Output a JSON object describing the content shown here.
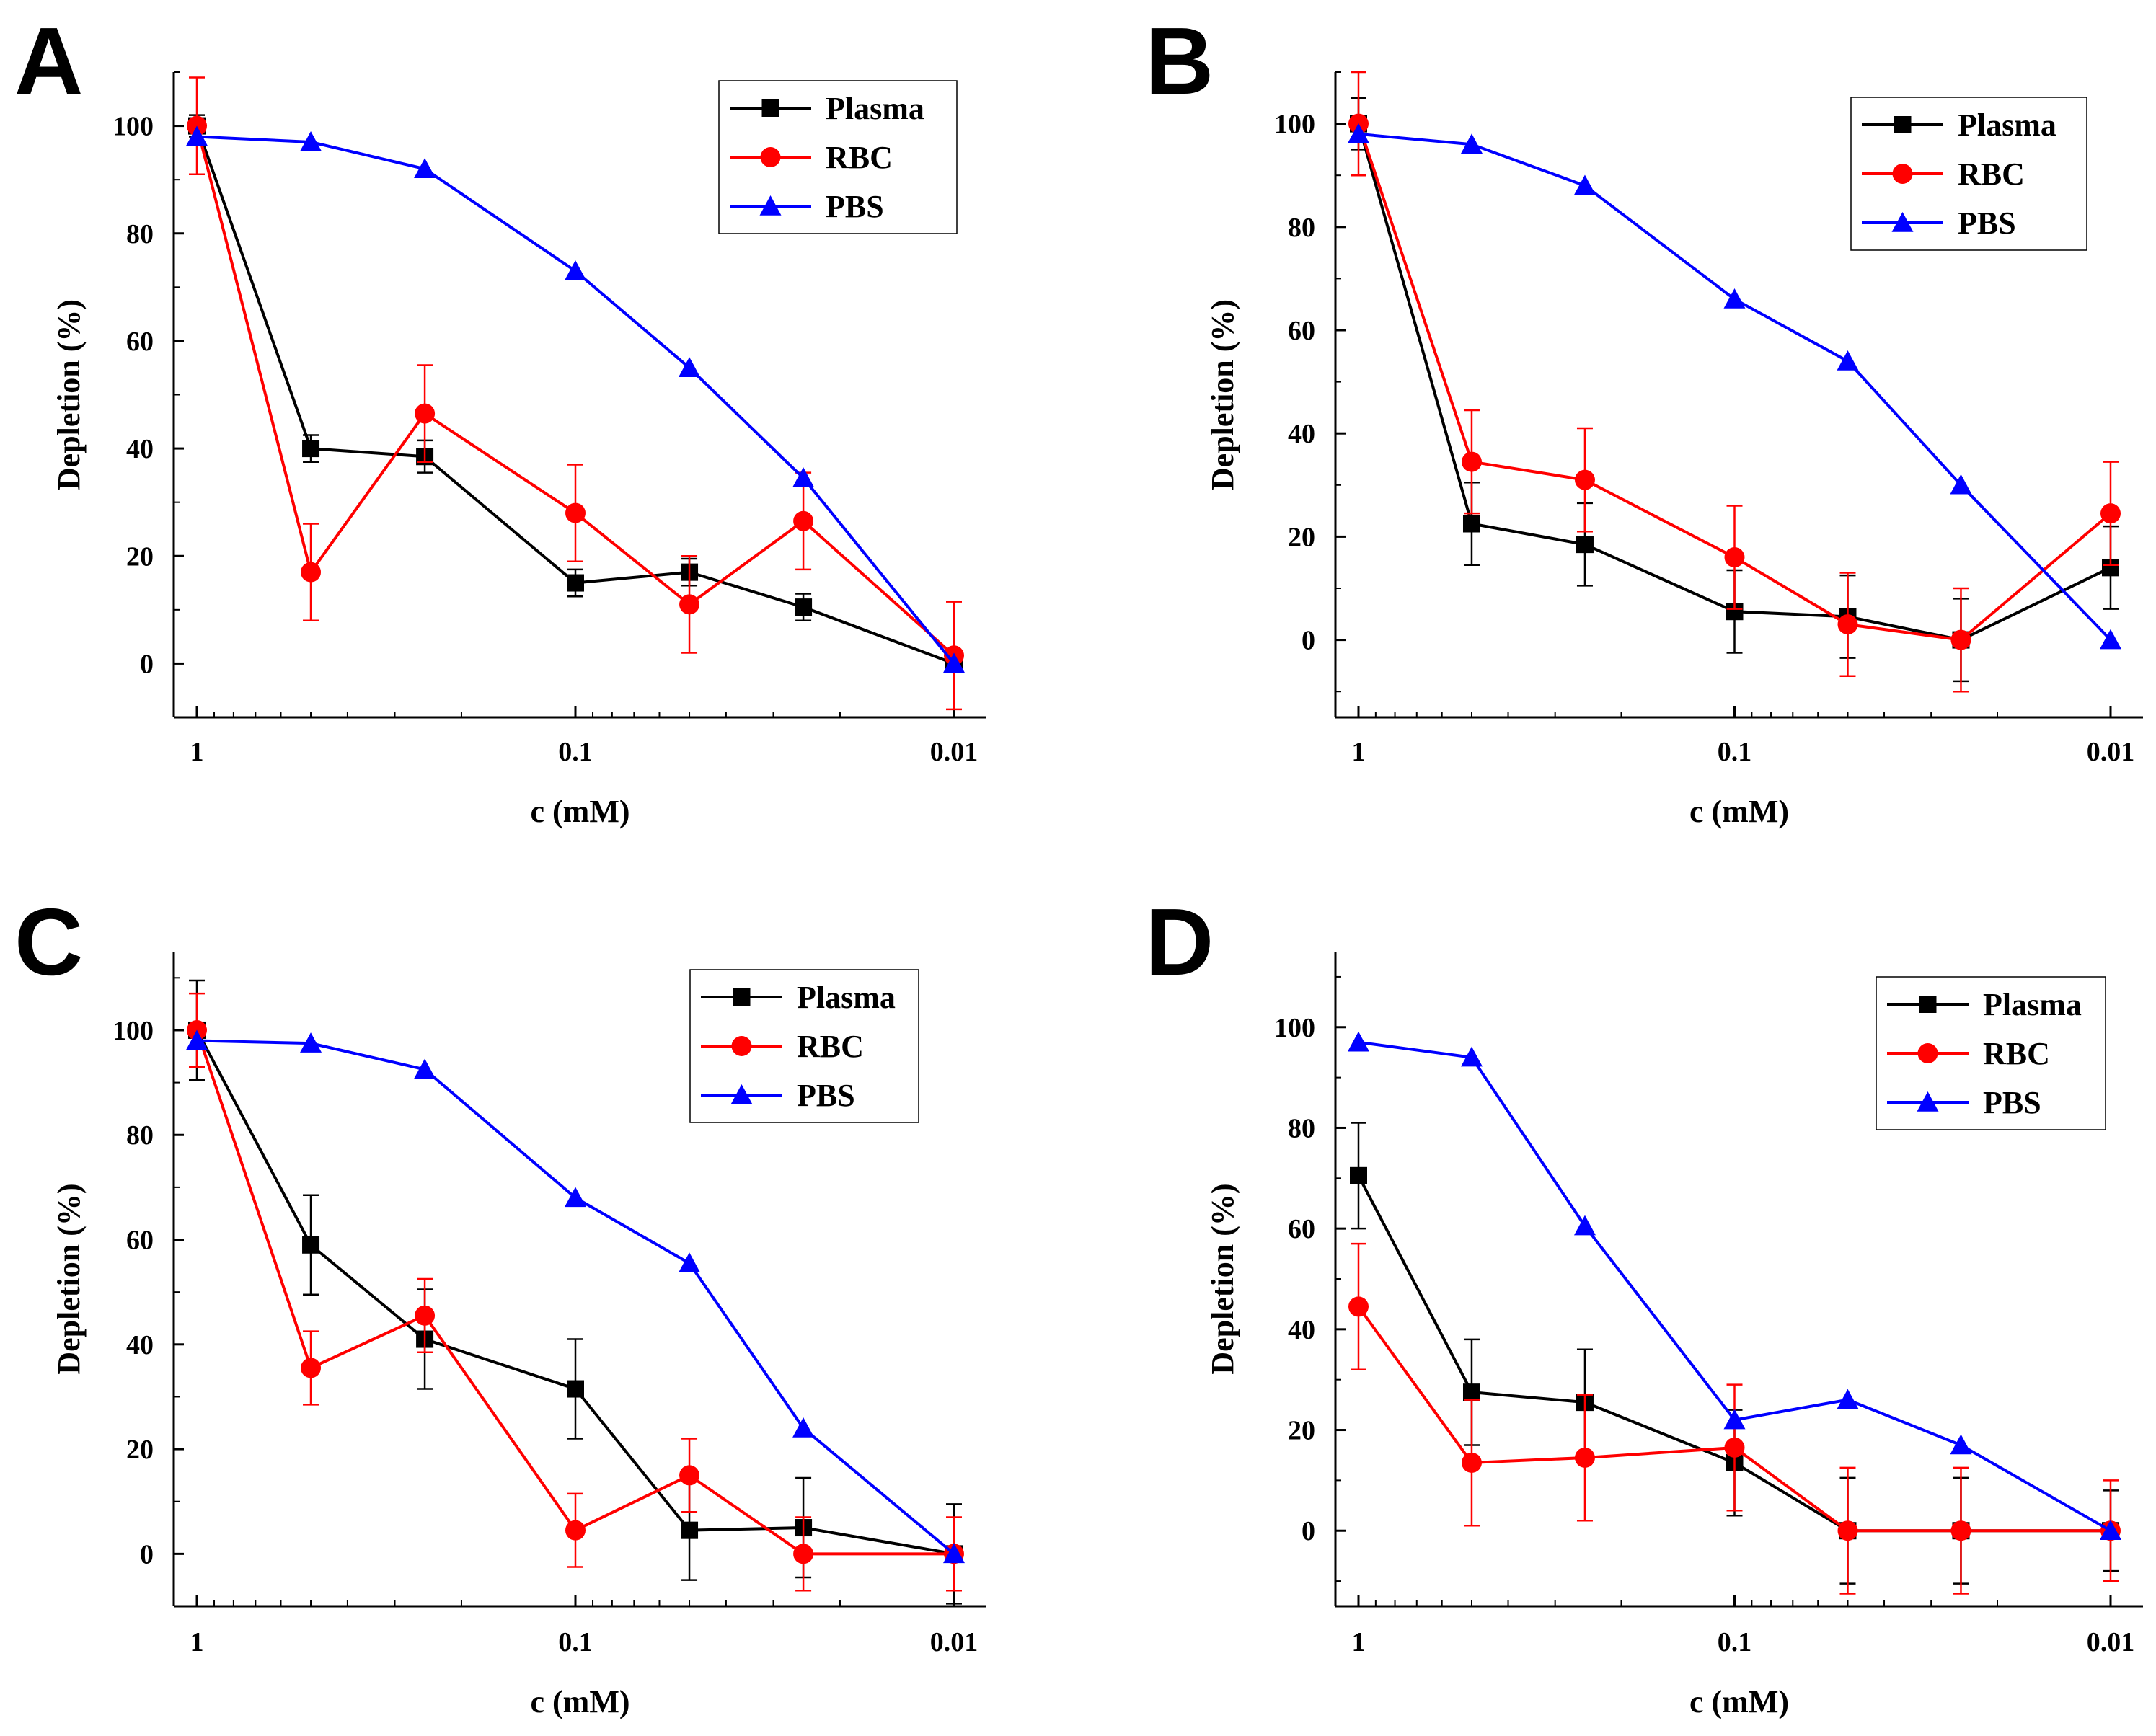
{
  "chart_data": [
    {
      "panel": "A",
      "type": "line",
      "x": [
        1,
        0.5,
        0.25,
        0.1,
        0.05,
        0.025,
        0.01
      ],
      "xscale": "log",
      "xlim": [
        1,
        0.01
      ],
      "xticks": [
        1,
        0.1,
        0.01
      ],
      "xtick_labels": [
        "1",
        "0.1",
        "0.01"
      ],
      "ylim": [
        -10,
        110
      ],
      "yticks": [
        0,
        20,
        40,
        60,
        80,
        100
      ],
      "ytick_labels": [
        "0",
        "20",
        "40",
        "60",
        "80",
        "100"
      ],
      "xlabel": "c (mM)",
      "ylabel": "Depletion (%)",
      "legend": "top-right",
      "series": [
        {
          "name": "Plasma",
          "color": "#000000",
          "marker": "square",
          "values": [
            100,
            40,
            38.5,
            15,
            17,
            10.5,
            0
          ],
          "errors": [
            2,
            2.5,
            3,
            2.5,
            2.5,
            2.5,
            1
          ]
        },
        {
          "name": "RBC",
          "color": "#ff0000",
          "marker": "circle",
          "values": [
            100,
            17,
            46.5,
            28,
            11,
            26.5,
            1.5
          ],
          "errors": [
            9,
            9,
            9,
            9,
            9,
            9,
            10
          ]
        },
        {
          "name": "PBS",
          "color": "#0000ff",
          "marker": "triangle",
          "values": [
            98,
            97,
            92,
            73,
            55,
            34.5,
            0
          ],
          "errors": [
            0,
            0,
            0,
            0,
            0,
            0,
            0
          ]
        }
      ]
    },
    {
      "panel": "B",
      "type": "line",
      "x": [
        1,
        0.5,
        0.25,
        0.1,
        0.05,
        0.025,
        0.01
      ],
      "xscale": "log",
      "xlim": [
        1,
        0.01
      ],
      "xticks": [
        1,
        0.1,
        0.01
      ],
      "xtick_labels": [
        "1",
        "0.1",
        "0.01"
      ],
      "ylim": [
        -15,
        110
      ],
      "yticks": [
        0,
        20,
        40,
        60,
        80,
        100
      ],
      "ytick_labels": [
        "0",
        "20",
        "40",
        "60",
        "80",
        "100"
      ],
      "xlabel": "c (mM)",
      "ylabel": "Depletion (%)",
      "legend": "top-right",
      "series": [
        {
          "name": "Plasma",
          "color": "#000000",
          "marker": "square",
          "values": [
            100,
            22.5,
            18.5,
            5.5,
            4.5,
            0,
            14
          ],
          "errors": [
            5,
            8,
            8,
            8,
            8,
            8,
            8
          ]
        },
        {
          "name": "RBC",
          "color": "#ff0000",
          "marker": "circle",
          "values": [
            100,
            34.5,
            31,
            16,
            3,
            0,
            24.5
          ],
          "errors": [
            10,
            10,
            10,
            10,
            10,
            10,
            10
          ]
        },
        {
          "name": "PBS",
          "color": "#0000ff",
          "marker": "triangle",
          "values": [
            98,
            96,
            88,
            66,
            54,
            30,
            0
          ],
          "errors": [
            0,
            0,
            0,
            0,
            0,
            0,
            0
          ]
        }
      ]
    },
    {
      "panel": "C",
      "type": "line",
      "x": [
        1,
        0.5,
        0.25,
        0.1,
        0.05,
        0.025,
        0.01
      ],
      "xscale": "log",
      "xlim": [
        1,
        0.01
      ],
      "xticks": [
        1,
        0.1,
        0.01
      ],
      "xtick_labels": [
        "1",
        "0.1",
        "0.01"
      ],
      "ylim": [
        -10,
        115
      ],
      "yticks": [
        0,
        20,
        40,
        60,
        80,
        100
      ],
      "ytick_labels": [
        "0",
        "20",
        "40",
        "60",
        "80",
        "100"
      ],
      "xlabel": "c (mM)",
      "ylabel": "Depletion (%)",
      "legend": "top-right",
      "series": [
        {
          "name": "Plasma",
          "color": "#000000",
          "marker": "square",
          "values": [
            100,
            59,
            41,
            31.5,
            4.5,
            5,
            0
          ],
          "errors": [
            9.5,
            9.5,
            9.5,
            9.5,
            9.5,
            9.5,
            9.5
          ]
        },
        {
          "name": "RBC",
          "color": "#ff0000",
          "marker": "circle",
          "values": [
            100,
            35.5,
            45.5,
            4.5,
            15,
            0,
            0
          ],
          "errors": [
            7,
            7,
            7,
            7,
            7,
            7,
            7
          ]
        },
        {
          "name": "PBS",
          "color": "#0000ff",
          "marker": "triangle",
          "values": [
            98,
            97.5,
            92.5,
            68,
            55.5,
            24,
            0
          ],
          "errors": [
            0,
            0,
            0,
            0,
            0,
            0,
            0
          ]
        }
      ]
    },
    {
      "panel": "D",
      "type": "line",
      "x": [
        1,
        0.5,
        0.25,
        0.1,
        0.05,
        0.025,
        0.01
      ],
      "xscale": "log",
      "xlim": [
        1,
        0.01
      ],
      "xticks": [
        1,
        0.1,
        0.01
      ],
      "xtick_labels": [
        "1",
        "0.1",
        "0.01"
      ],
      "ylim": [
        -15,
        115
      ],
      "yticks": [
        0,
        20,
        40,
        60,
        80,
        100
      ],
      "ytick_labels": [
        "0",
        "20",
        "40",
        "60",
        "80",
        "100"
      ],
      "xlabel": "c (mM)",
      "ylabel": "Depletion (%)",
      "legend": "top-right",
      "series": [
        {
          "name": "Plasma",
          "color": "#000000",
          "marker": "square",
          "values": [
            70.5,
            27.5,
            25.5,
            13.5,
            0,
            0,
            0
          ],
          "errors": [
            10.5,
            10.5,
            10.5,
            10.5,
            10.5,
            10.5,
            8
          ]
        },
        {
          "name": "RBC",
          "color": "#ff0000",
          "marker": "circle",
          "values": [
            44.5,
            13.5,
            14.5,
            16.5,
            0,
            0,
            0
          ],
          "errors": [
            12.5,
            12.5,
            12.5,
            12.5,
            12.5,
            12.5,
            10
          ]
        },
        {
          "name": "PBS",
          "color": "#0000ff",
          "marker": "triangle",
          "values": [
            97,
            94,
            60.5,
            22,
            26,
            17,
            0
          ],
          "errors": [
            0,
            0,
            0,
            0,
            0,
            0,
            0
          ]
        }
      ]
    }
  ]
}
